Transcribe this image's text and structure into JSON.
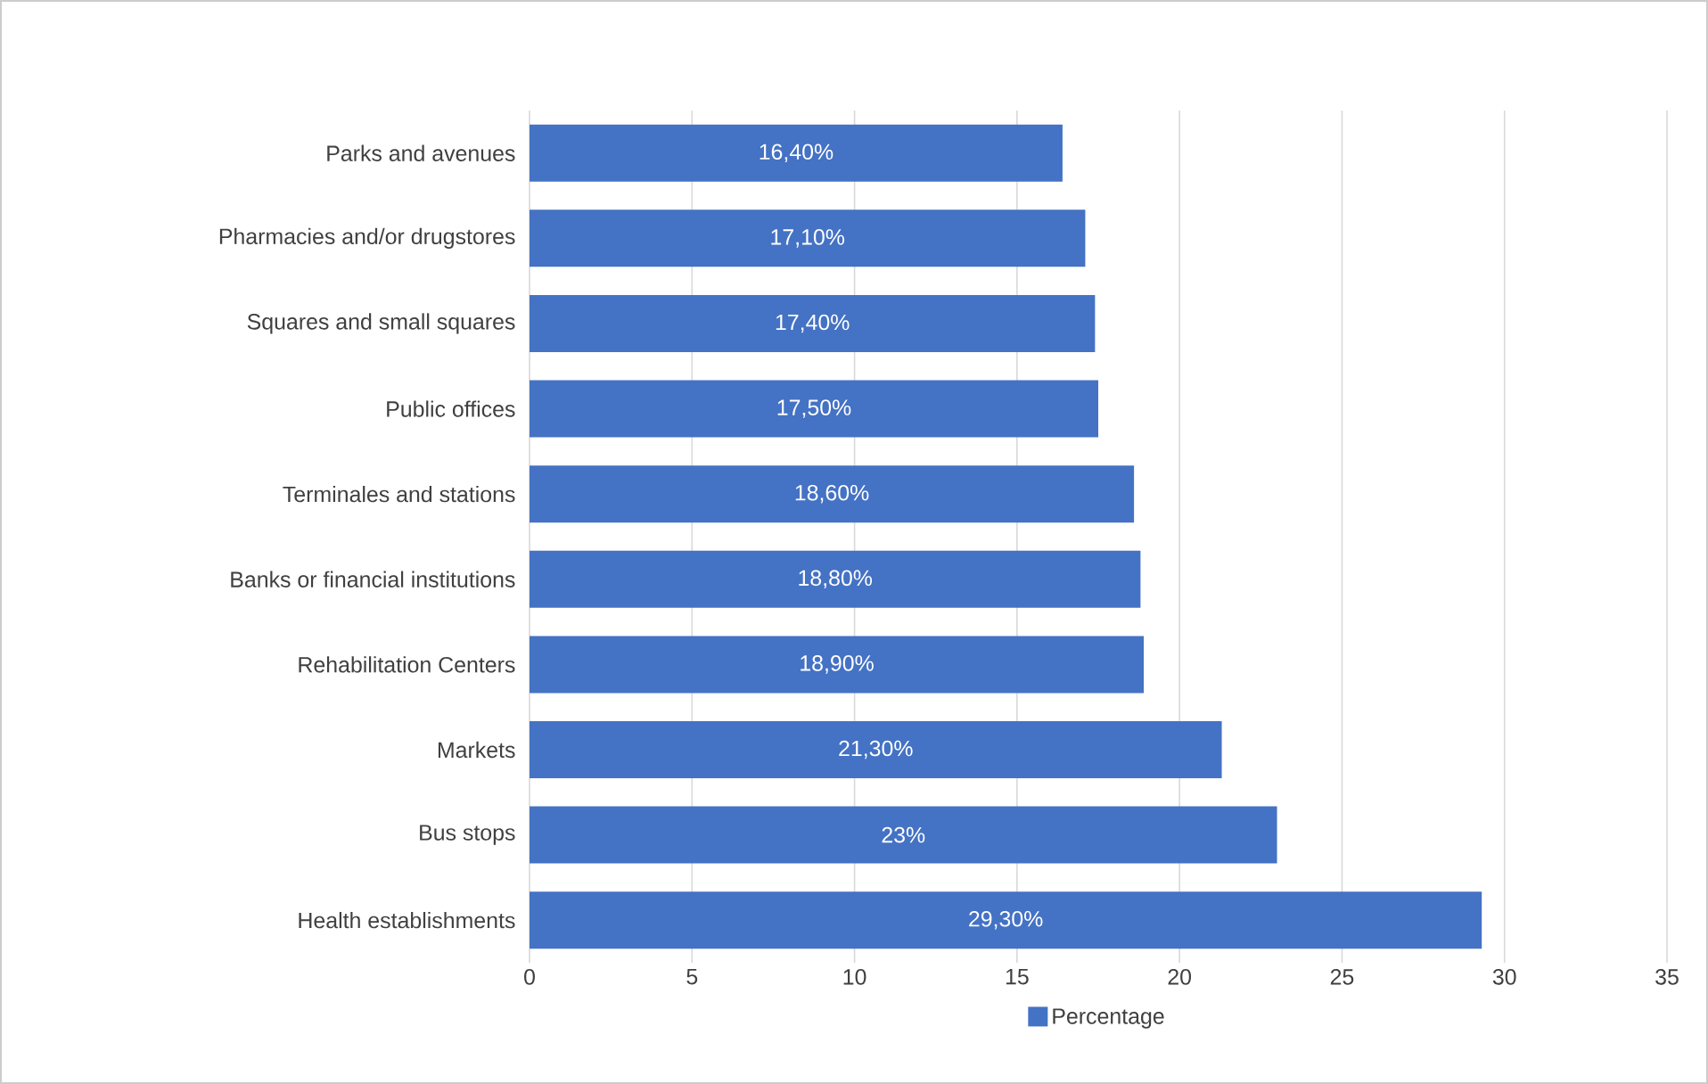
{
  "chart_data": {
    "type": "bar",
    "orientation": "horizontal",
    "categories": [
      "Parks and avenues",
      "Pharmacies and/or drugstores",
      "Squares and small squares",
      "Public offices",
      "Terminales and stations",
      "Banks or financial institutions",
      "Rehabilitation Centers",
      "Markets",
      "Bus stops",
      "Health establishments"
    ],
    "series": [
      {
        "name": "Percentage",
        "color": "#4472c4",
        "values": [
          16.4,
          17.1,
          17.4,
          17.5,
          18.6,
          18.8,
          18.9,
          21.3,
          23,
          29.3
        ],
        "value_labels": [
          "16,40%",
          "17,10%",
          "17,40%",
          "17,50%",
          "18,60%",
          "18,80%",
          "18,90%",
          "21,30%",
          "23%",
          "29,30%"
        ]
      }
    ],
    "xlim": [
      0,
      35
    ],
    "xticks": [
      0,
      5,
      10,
      15,
      20,
      25,
      30,
      35
    ],
    "grid": "x",
    "legend": "bottom"
  }
}
